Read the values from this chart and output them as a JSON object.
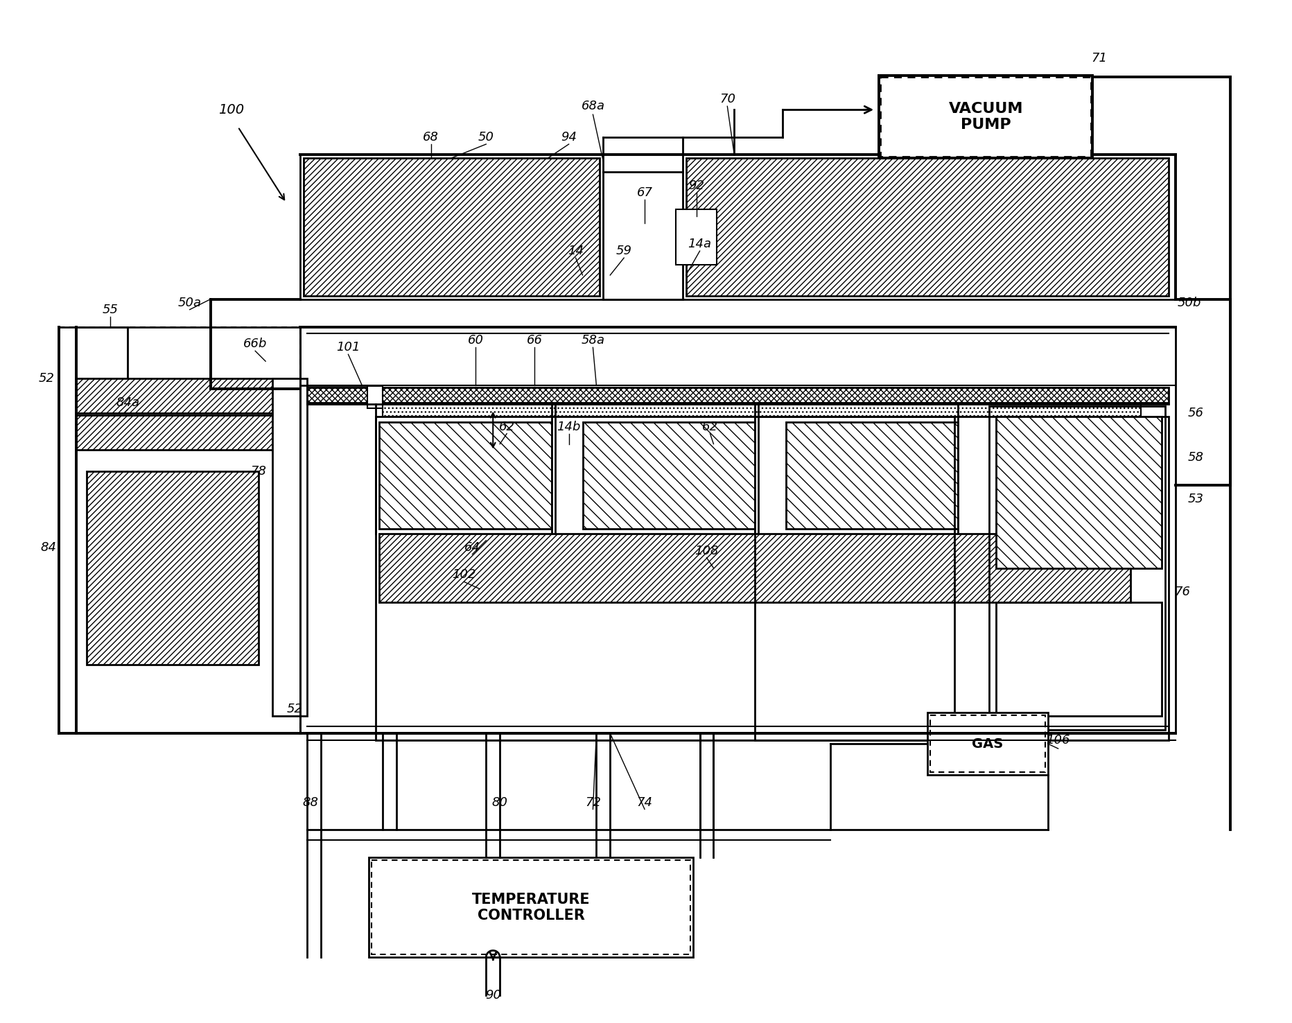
{
  "bg_color": "#ffffff",
  "fig_width": 18.65,
  "fig_height": 14.76,
  "dpi": 100,
  "vacuum_pump_text": "VACUUM\nPUMP",
  "gas_text": "GAS",
  "temp_controller_text": "TEMPERATURE\nCONTROLLER"
}
